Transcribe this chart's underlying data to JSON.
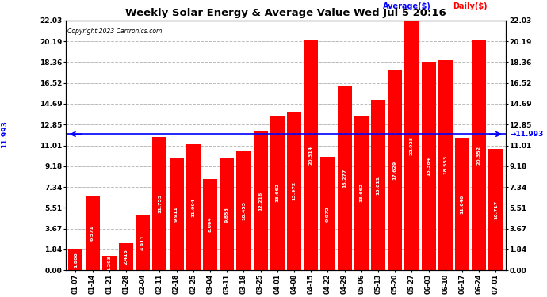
{
  "title": "Weekly Solar Energy & Average Value Wed Jul 5 20:16",
  "copyright": "Copyright 2023 Cartronics.com",
  "legend_avg": "Average($)",
  "legend_daily": "Daily($)",
  "average_value": 11.993,
  "bar_color": "#ff0000",
  "average_line_color": "#0000ff",
  "background_color": "#ffffff",
  "grid_color": "#bbbbbb",
  "yticks": [
    0.0,
    1.84,
    3.67,
    5.51,
    7.34,
    9.18,
    11.01,
    12.85,
    14.69,
    16.52,
    18.36,
    20.19,
    22.03
  ],
  "ylim": [
    0,
    22.03
  ],
  "categories": [
    "01-07",
    "01-14",
    "01-21",
    "01-28",
    "02-04",
    "02-11",
    "02-18",
    "02-25",
    "03-04",
    "03-11",
    "03-18",
    "03-25",
    "04-01",
    "04-08",
    "04-15",
    "04-22",
    "04-29",
    "05-06",
    "05-13",
    "05-20",
    "05-27",
    "06-03",
    "06-10",
    "06-17",
    "06-24",
    "07-01"
  ],
  "values": [
    1.806,
    6.571,
    1.293,
    2.416,
    4.911,
    11.755,
    9.911,
    11.094,
    8.064,
    9.853,
    10.455,
    12.216,
    13.662,
    13.972,
    20.314,
    9.972,
    16.277,
    13.662,
    15.011,
    17.629,
    22.028,
    18.384,
    18.553,
    11.646,
    20.352,
    10.717
  ]
}
